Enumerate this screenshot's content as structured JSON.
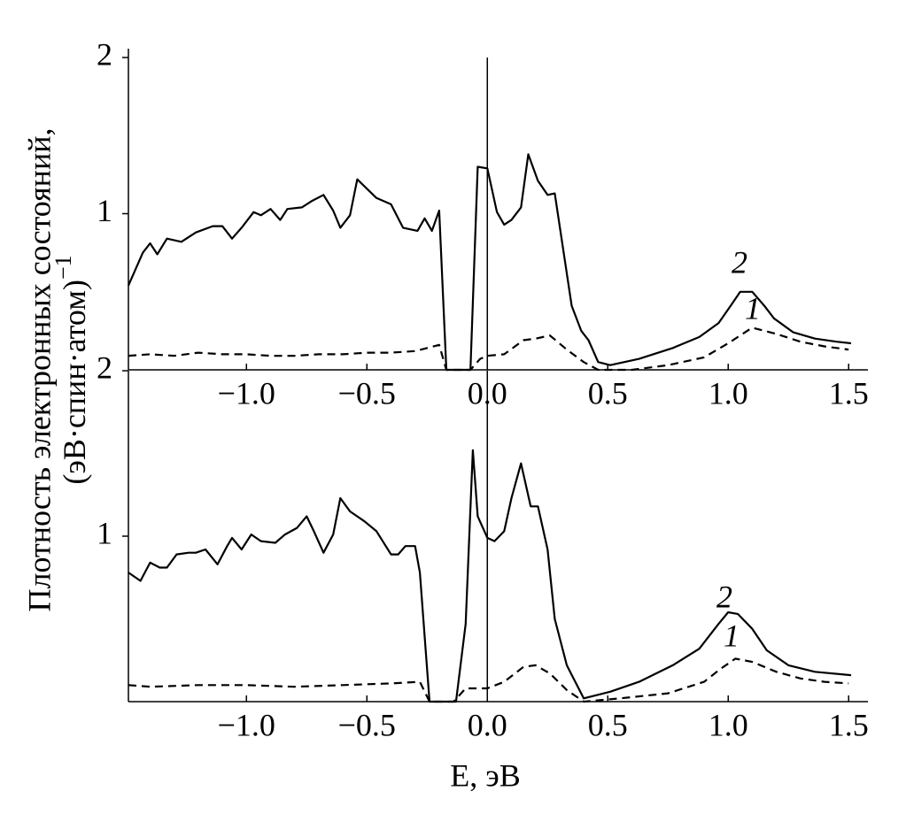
{
  "chart_data": [
    {
      "type": "line",
      "ylabel": {
        "lines": [
          "Плотность электронных состояний,",
          "(эВ·спин·атом)"
        ],
        "superscript": "−1"
      },
      "xlim": [
        -1.49,
        1.58
      ],
      "ylim": [
        0,
        2
      ],
      "yticks": [
        1,
        2
      ],
      "xticks": [
        {
          "value": -1.0,
          "label": "−1.0"
        },
        {
          "value": -0.5,
          "label": "−0.5"
        },
        {
          "value": 0.0,
          "label": "0.0"
        },
        0.5,
        {
          "value": 1.0,
          "label": "1.0"
        },
        1.5
      ],
      "vline": 0,
      "series": [
        {
          "name": "2",
          "color": "#000000",
          "dash": false,
          "x": [
            -1.49,
            -1.43,
            -1.4,
            -1.37,
            -1.33,
            -1.27,
            -1.21,
            -1.14,
            -1.1,
            -1.06,
            -1.02,
            -0.97,
            -0.94,
            -0.9,
            -0.86,
            -0.83,
            -0.77,
            -0.73,
            -0.68,
            -0.64,
            -0.61,
            -0.57,
            -0.54,
            -0.5,
            -0.46,
            -0.4,
            -0.35,
            -0.29,
            -0.26,
            -0.23,
            -0.2,
            -0.17,
            -0.07,
            -0.04,
            0.0,
            0.04,
            0.07,
            0.1,
            0.14,
            0.17,
            0.21,
            0.25,
            0.28,
            0.35,
            0.39,
            0.42,
            0.46,
            0.51,
            0.63,
            0.77,
            0.88,
            0.96,
            1.01,
            1.05,
            1.1,
            1.15,
            1.19,
            1.27,
            1.36,
            1.45,
            1.51
          ],
          "values": [
            0.54,
            0.75,
            0.81,
            0.74,
            0.84,
            0.82,
            0.88,
            0.92,
            0.92,
            0.84,
            0.91,
            1.01,
            0.99,
            1.03,
            0.96,
            1.03,
            1.04,
            1.08,
            1.12,
            1.02,
            0.91,
            0.99,
            1.22,
            1.16,
            1.1,
            1.06,
            0.91,
            0.89,
            0.97,
            0.89,
            1.02,
            0,
            0,
            1.3,
            1.29,
            1.01,
            0.93,
            0.96,
            1.04,
            1.38,
            1.21,
            1.12,
            1.13,
            0.41,
            0.25,
            0.19,
            0.05,
            0.03,
            0.07,
            0.14,
            0.21,
            0.3,
            0.41,
            0.5,
            0.5,
            0.41,
            0.33,
            0.24,
            0.2,
            0.18,
            0.17
          ]
        },
        {
          "name": "1",
          "color": "#000000",
          "dash": true,
          "x": [
            -1.49,
            -1.4,
            -1.3,
            -1.2,
            -1.1,
            -1.0,
            -0.9,
            -0.8,
            -0.7,
            -0.6,
            -0.5,
            -0.4,
            -0.3,
            -0.2,
            -0.17,
            -0.07,
            -0.03,
            0.0,
            0.07,
            0.15,
            0.2,
            0.26,
            0.33,
            0.4,
            0.46,
            0.6,
            0.75,
            0.9,
            1.0,
            1.1,
            1.2,
            1.3,
            1.4,
            1.5
          ],
          "values": [
            0.09,
            0.1,
            0.09,
            0.11,
            0.1,
            0.1,
            0.09,
            0.09,
            0.1,
            0.1,
            0.11,
            0.11,
            0.12,
            0.16,
            0,
            0,
            0.07,
            0.09,
            0.1,
            0.19,
            0.2,
            0.22,
            0.13,
            0.05,
            0.0,
            0.0,
            0.03,
            0.08,
            0.17,
            0.27,
            0.23,
            0.18,
            0.15,
            0.13
          ]
        }
      ]
    },
    {
      "type": "line",
      "xlabel": "E, эВ",
      "xlim": [
        -1.49,
        1.58
      ],
      "ylim": [
        0,
        2
      ],
      "yticks": [
        1,
        2
      ],
      "xticks": [
        {
          "value": -1.0,
          "label": "−1.0"
        },
        {
          "value": -0.5,
          "label": "−0.5"
        },
        {
          "value": 0.0,
          "label": "0.0"
        },
        0.5,
        {
          "value": 1.0,
          "label": "1.0"
        },
        1.5
      ],
      "vline": 0,
      "series": [
        {
          "name": "2",
          "color": "#000000",
          "dash": false,
          "x": [
            -1.49,
            -1.44,
            -1.4,
            -1.36,
            -1.33,
            -1.29,
            -1.24,
            -1.21,
            -1.17,
            -1.12,
            -1.08,
            -1.06,
            -1.02,
            -0.98,
            -0.94,
            -0.88,
            -0.84,
            -0.79,
            -0.75,
            -0.72,
            -0.68,
            -0.64,
            -0.61,
            -0.57,
            -0.51,
            -0.46,
            -0.4,
            -0.37,
            -0.34,
            -0.3,
            -0.28,
            -0.24,
            -0.13,
            -0.09,
            -0.06,
            -0.04,
            0.0,
            0.03,
            0.07,
            0.1,
            0.14,
            0.18,
            0.21,
            0.25,
            0.28,
            0.33,
            0.4,
            0.51,
            0.63,
            0.77,
            0.88,
            0.96,
            1.0,
            1.04,
            1.1,
            1.16,
            1.25,
            1.36,
            1.51
          ],
          "values": [
            0.78,
            0.73,
            0.84,
            0.81,
            0.81,
            0.89,
            0.9,
            0.9,
            0.92,
            0.83,
            0.94,
            0.99,
            0.92,
            1.01,
            0.97,
            0.96,
            1.01,
            1.05,
            1.12,
            1.03,
            0.9,
            1.01,
            1.23,
            1.15,
            1.09,
            1.03,
            0.89,
            0.89,
            0.94,
            0.94,
            0.78,
            0,
            0,
            0.47,
            1.52,
            1.12,
            0.99,
            0.97,
            1.03,
            1.23,
            1.44,
            1.18,
            1.18,
            0.92,
            0.5,
            0.22,
            0.02,
            0.06,
            0.12,
            0.22,
            0.32,
            0.47,
            0.54,
            0.53,
            0.44,
            0.31,
            0.22,
            0.18,
            0.16
          ]
        },
        {
          "name": "1",
          "color": "#000000",
          "dash": true,
          "x": [
            -1.49,
            -1.4,
            -1.2,
            -1.0,
            -0.8,
            -0.6,
            -0.4,
            -0.28,
            -0.24,
            -0.14,
            -0.09,
            0.0,
            0.07,
            0.15,
            0.2,
            0.26,
            0.33,
            0.4,
            0.55,
            0.75,
            0.9,
            0.97,
            1.03,
            1.1,
            1.2,
            1.3,
            1.4,
            1.5
          ],
          "values": [
            0.1,
            0.09,
            0.1,
            0.1,
            0.09,
            0.1,
            0.11,
            0.12,
            0,
            0,
            0.08,
            0.08,
            0.12,
            0.21,
            0.22,
            0.17,
            0.07,
            0.0,
            0.02,
            0.05,
            0.12,
            0.2,
            0.26,
            0.24,
            0.18,
            0.14,
            0.12,
            0.11
          ]
        }
      ]
    }
  ]
}
